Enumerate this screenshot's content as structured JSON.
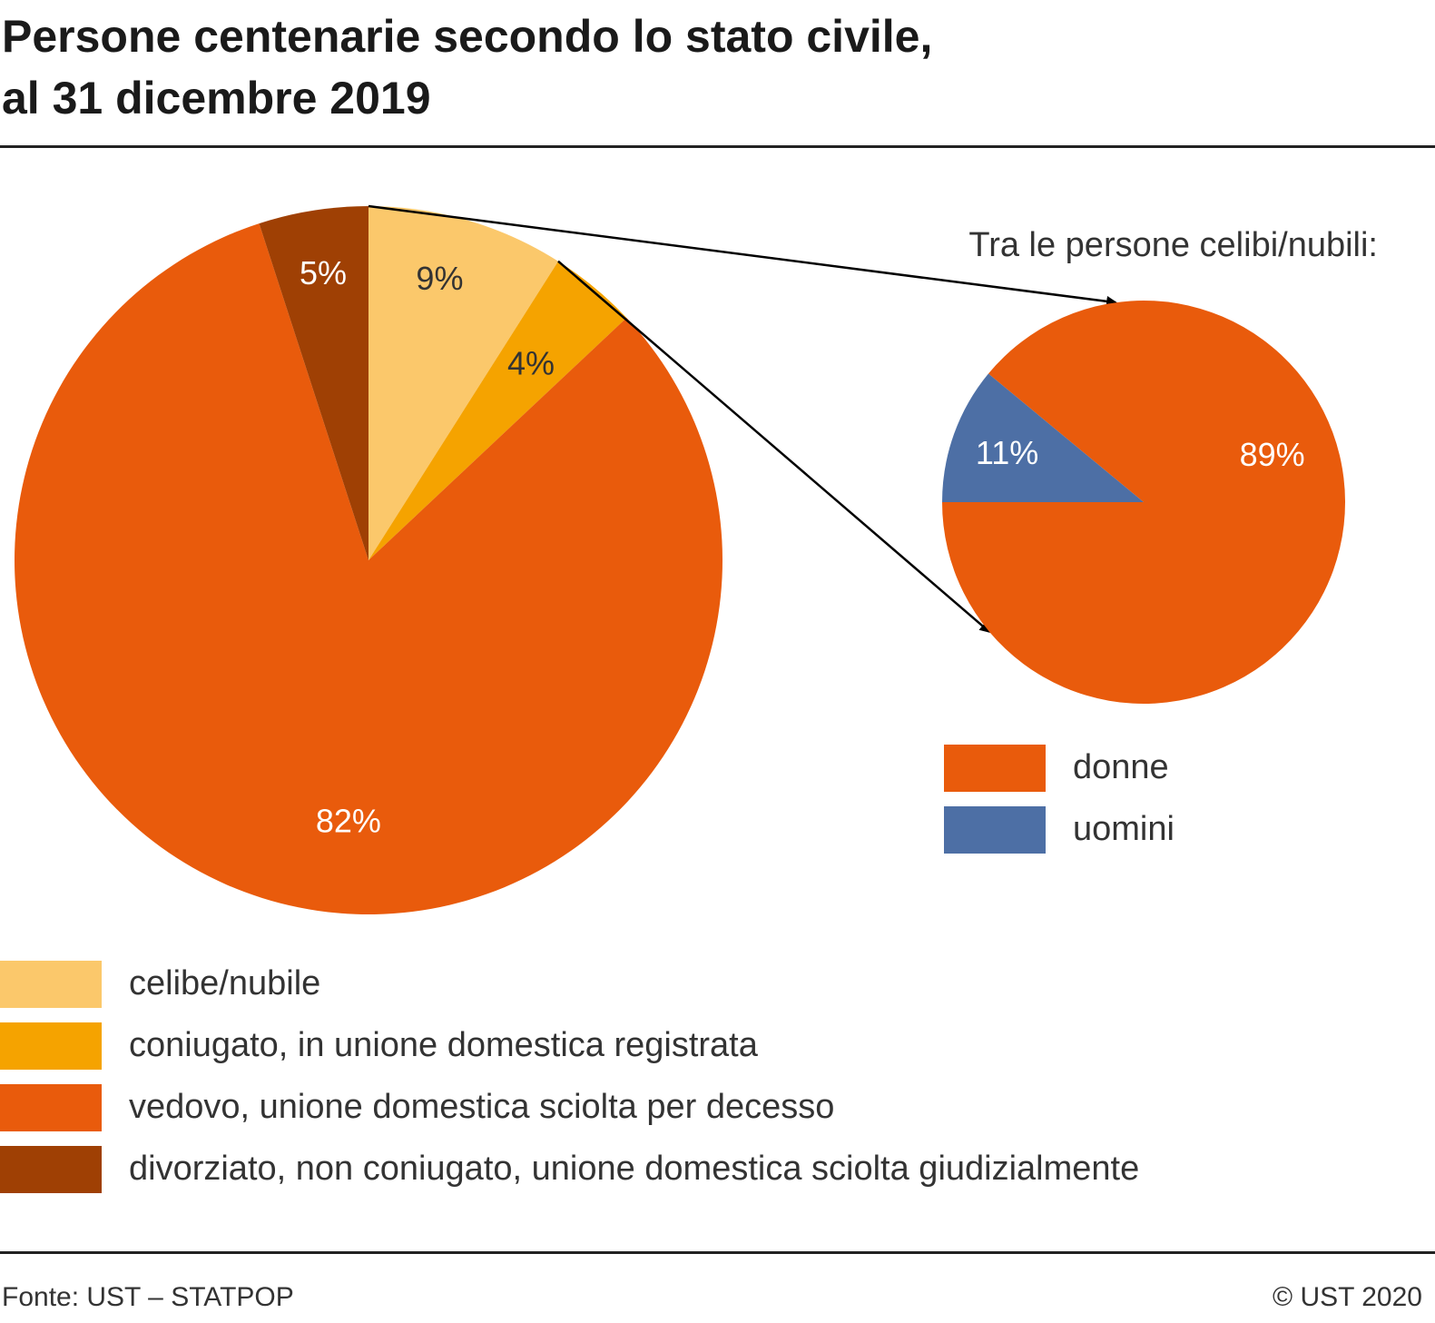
{
  "title_line1": "Persone centenarie secondo lo stato civile,",
  "title_line2": "al 31 dicembre 2019",
  "chart_data": [
    {
      "type": "pie",
      "categories": [
        "celibe/nubile",
        "coniugato, in unione domestica registrata",
        "vedovo, unione domestica sciolta per decesso",
        "divorziato, non coniugato, unione domestica sciolta giudizialmente"
      ],
      "values": [
        9,
        4,
        82,
        5
      ],
      "value_labels": [
        "9%",
        "4%",
        "82%",
        "5%"
      ],
      "colors": [
        "#fbc86b",
        "#f5a300",
        "#e95b0c",
        "#9f4004"
      ],
      "legend_position": "bottom-left"
    },
    {
      "type": "pie",
      "title": "Tra le persone celibi/nubili:",
      "categories": [
        "donne",
        "uomini"
      ],
      "values": [
        89,
        11
      ],
      "value_labels": [
        "89%",
        "11%"
      ],
      "colors": [
        "#e95b0c",
        "#4d6fa5"
      ],
      "legend_position": "bottom"
    }
  ],
  "footer": {
    "source": "Fonte: UST – STATPOP",
    "copyright": "© UST 2020"
  }
}
